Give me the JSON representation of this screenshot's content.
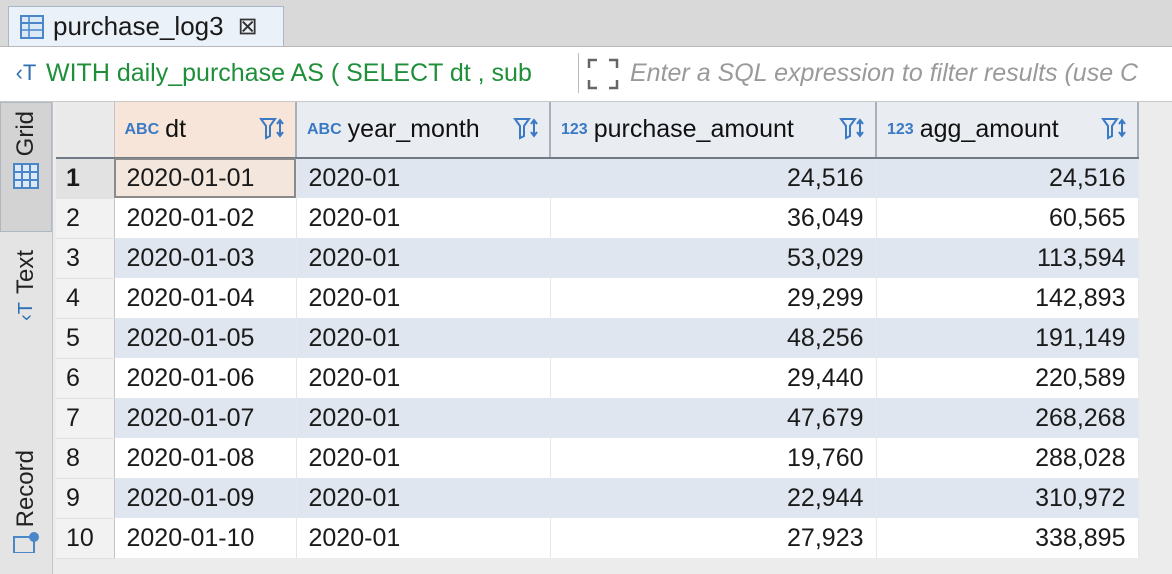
{
  "tab": {
    "title": "purchase_log3",
    "close_glyph": "⊠"
  },
  "filter": {
    "query_text": "WITH daily_purchase AS ( SELECT dt , sub",
    "placeholder": "Enter a SQL expression to filter results (use C"
  },
  "side_tabs": {
    "grid": "Grid",
    "text": "Text",
    "record": "Record"
  },
  "columns": [
    {
      "type": "ABC",
      "name": "dt"
    },
    {
      "type": "ABC",
      "name": "year_month"
    },
    {
      "type": "123",
      "name": "purchase_amount"
    },
    {
      "type": "123",
      "name": "agg_amount"
    }
  ],
  "rows": [
    {
      "n": "1",
      "dt": "2020-01-01",
      "ym": "2020-01",
      "pa": "24,516",
      "agg": "24,516"
    },
    {
      "n": "2",
      "dt": "2020-01-02",
      "ym": "2020-01",
      "pa": "36,049",
      "agg": "60,565"
    },
    {
      "n": "3",
      "dt": "2020-01-03",
      "ym": "2020-01",
      "pa": "53,029",
      "agg": "113,594"
    },
    {
      "n": "4",
      "dt": "2020-01-04",
      "ym": "2020-01",
      "pa": "29,299",
      "agg": "142,893"
    },
    {
      "n": "5",
      "dt": "2020-01-05",
      "ym": "2020-01",
      "pa": "48,256",
      "agg": "191,149"
    },
    {
      "n": "6",
      "dt": "2020-01-06",
      "ym": "2020-01",
      "pa": "29,440",
      "agg": "220,589"
    },
    {
      "n": "7",
      "dt": "2020-01-07",
      "ym": "2020-01",
      "pa": "47,679",
      "agg": "268,268"
    },
    {
      "n": "8",
      "dt": "2020-01-08",
      "ym": "2020-01",
      "pa": "19,760",
      "agg": "288,028"
    },
    {
      "n": "9",
      "dt": "2020-01-09",
      "ym": "2020-01",
      "pa": "22,944",
      "agg": "310,972"
    },
    {
      "n": "10",
      "dt": "2020-01-10",
      "ym": "2020-01",
      "pa": "27,923",
      "agg": "338,895"
    }
  ],
  "colors": {
    "accent": "#3a79c4",
    "query_green": "#1f8f3a",
    "row_alt": "#dfe6ef",
    "selected_cell": "#f3e6dd"
  }
}
